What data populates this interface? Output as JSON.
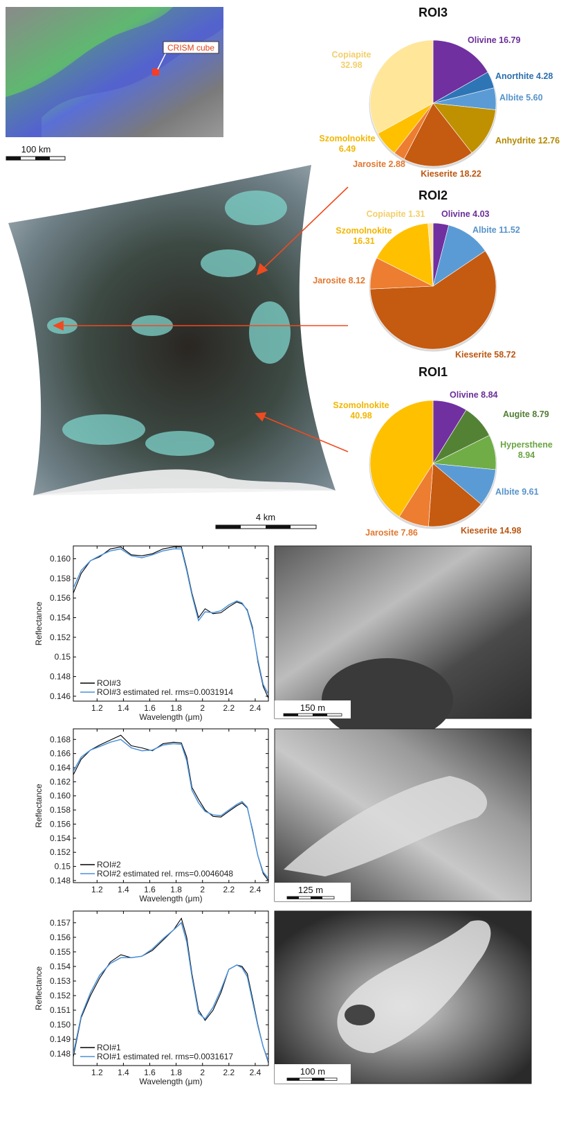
{
  "top": {
    "map_callout": "CRISM cube",
    "map_scale": "100 km",
    "cube_scale": "4 km"
  },
  "chart_data": [
    {
      "type": "pie",
      "title": "ROI3",
      "slices": [
        {
          "label": "Olivine",
          "value": 16.79,
          "text": "16.79",
          "color": "#7030a0"
        },
        {
          "label": "Anorthite",
          "value": 4.28,
          "text": "4.28",
          "color": "#2e75b6"
        },
        {
          "label": "Albite",
          "value": 5.6,
          "text": "5.60",
          "color": "#5b9bd5"
        },
        {
          "label": "Anhydrite",
          "value": 12.76,
          "text": "12.76",
          "color": "#bf9000"
        },
        {
          "label": "Kieserite",
          "value": 18.22,
          "text": "18.22",
          "color": "#c55a11"
        },
        {
          "label": "Jarosite",
          "value": 2.88,
          "text": "2.88",
          "color": "#ed7d31"
        },
        {
          "label": "Szomolnokite",
          "value": 6.49,
          "text": "6.49",
          "color": "#ffc000"
        },
        {
          "label": "Copiapite",
          "value": 32.98,
          "text": "32.98",
          "color": "#ffe699"
        }
      ]
    },
    {
      "type": "pie",
      "title": "ROI2",
      "slices": [
        {
          "label": "Olivine",
          "value": 4.03,
          "text": "4.03",
          "color": "#7030a0"
        },
        {
          "label": "Albite",
          "value": 11.52,
          "text": "11.52",
          "color": "#5b9bd5"
        },
        {
          "label": "Kieserite",
          "value": 58.72,
          "text": "58.72",
          "color": "#c55a11"
        },
        {
          "label": "Jarosite",
          "value": 8.12,
          "text": "8.12",
          "color": "#ed7d31"
        },
        {
          "label": "Szomolnokite",
          "value": 16.31,
          "text": "16.31",
          "color": "#ffc000"
        },
        {
          "label": "Copiapite",
          "value": 1.31,
          "text": "1.31",
          "color": "#ffe699"
        }
      ]
    },
    {
      "type": "pie",
      "title": "ROI1",
      "slices": [
        {
          "label": "Olivine",
          "value": 8.84,
          "text": "8.84",
          "color": "#7030a0"
        },
        {
          "label": "Augite",
          "value": 8.79,
          "text": "8.79",
          "color": "#548235"
        },
        {
          "label": "Hypersthene",
          "value": 8.94,
          "text": "8.94",
          "color": "#70ad47"
        },
        {
          "label": "Albite",
          "value": 9.61,
          "text": "9.61",
          "color": "#5b9bd5"
        },
        {
          "label": "Kieserite",
          "value": 14.98,
          "text": "14.98",
          "color": "#c55a11"
        },
        {
          "label": "Jarosite",
          "value": 7.86,
          "text": "7.86",
          "color": "#ed7d31"
        },
        {
          "label": "Szomolnokite",
          "value": 40.98,
          "text": "40.98",
          "color": "#ffc000"
        }
      ]
    },
    {
      "type": "line",
      "title": "",
      "xlabel": "Wavelength (μm)",
      "ylabel": "Reflectance",
      "xlim": [
        1.02,
        2.5
      ],
      "ylim": [
        0.1455,
        0.1613
      ],
      "xticks": [
        "1.2",
        "1.4",
        "1.6",
        "1.8",
        "2",
        "2.2",
        "2.4"
      ],
      "yticks": [
        "0.160",
        "0.158",
        "0.156",
        "0.154",
        "0.152",
        "0.15",
        "0.148",
        "0.146"
      ],
      "legend_position": "bottom-left",
      "grid": false,
      "x": [
        1.02,
        1.08,
        1.15,
        1.22,
        1.3,
        1.38,
        1.46,
        1.54,
        1.62,
        1.7,
        1.78,
        1.84,
        1.88,
        1.92,
        1.97,
        2.02,
        2.08,
        2.14,
        2.2,
        2.26,
        2.3,
        2.34,
        2.38,
        2.42,
        2.46,
        2.5
      ],
      "series": [
        {
          "name": "ROI#3",
          "color": "#000000",
          "values": [
            0.1565,
            0.1585,
            0.1598,
            0.1602,
            0.161,
            0.1612,
            0.1604,
            0.1603,
            0.1605,
            0.161,
            0.1612,
            0.1612,
            0.159,
            0.1565,
            0.154,
            0.1549,
            0.1544,
            0.1545,
            0.1551,
            0.1556,
            0.1554,
            0.1548,
            0.153,
            0.1495,
            0.147,
            0.1458
          ]
        },
        {
          "name": "ROI#3 estimated rel. rms=0.0031914",
          "color": "#4a90d9",
          "values": [
            0.157,
            0.1588,
            0.1598,
            0.1603,
            0.1608,
            0.161,
            0.1603,
            0.1601,
            0.1604,
            0.1608,
            0.161,
            0.161,
            0.1588,
            0.1563,
            0.1537,
            0.1546,
            0.1545,
            0.1547,
            0.1553,
            0.1557,
            0.1555,
            0.1547,
            0.1528,
            0.1497,
            0.1472,
            0.1462
          ]
        }
      ]
    },
    {
      "type": "line",
      "title": "",
      "xlabel": "Wavelength (μm)",
      "ylabel": "Reflectance",
      "xlim": [
        1.02,
        2.5
      ],
      "ylim": [
        0.1477,
        0.1695
      ],
      "xticks": [
        "1.2",
        "1.4",
        "1.6",
        "1.8",
        "2",
        "2.2",
        "2.4"
      ],
      "yticks": [
        "0.168",
        "0.166",
        "0.164",
        "0.162",
        "0.160",
        "0.158",
        "0.156",
        "0.154",
        "0.152",
        "0.15",
        "0.148"
      ],
      "legend_position": "bottom-left",
      "grid": false,
      "x": [
        1.02,
        1.08,
        1.15,
        1.22,
        1.3,
        1.38,
        1.46,
        1.54,
        1.62,
        1.7,
        1.78,
        1.84,
        1.88,
        1.92,
        1.97,
        2.02,
        2.08,
        2.14,
        2.2,
        2.26,
        2.3,
        2.34,
        2.38,
        2.42,
        2.46,
        2.5
      ],
      "series": [
        {
          "name": "ROI#2",
          "color": "#000000",
          "values": [
            0.163,
            0.1652,
            0.1665,
            0.1672,
            0.1679,
            0.1686,
            0.1671,
            0.1668,
            0.1664,
            0.1674,
            0.1676,
            0.1675,
            0.1655,
            0.1612,
            0.1595,
            0.158,
            0.1571,
            0.157,
            0.1578,
            0.1586,
            0.159,
            0.1583,
            0.1552,
            0.1515,
            0.149,
            0.148
          ]
        },
        {
          "name": "ROI#2 estimated rel. rms=0.0046048",
          "color": "#4a90d9",
          "values": [
            0.1635,
            0.1655,
            0.1665,
            0.167,
            0.1676,
            0.168,
            0.1668,
            0.1664,
            0.1665,
            0.1672,
            0.1674,
            0.1673,
            0.165,
            0.1608,
            0.159,
            0.1578,
            0.1573,
            0.1572,
            0.158,
            0.1588,
            0.1592,
            0.1584,
            0.155,
            0.1515,
            0.1492,
            0.1483
          ]
        }
      ]
    },
    {
      "type": "line",
      "title": "",
      "xlabel": "Wavelength (μm)",
      "ylabel": "Reflectance",
      "xlim": [
        1.02,
        2.5
      ],
      "ylim": [
        0.1472,
        0.1578
      ],
      "xticks": [
        "1.2",
        "1.4",
        "1.6",
        "1.8",
        "2",
        "2.2",
        "2.4"
      ],
      "yticks": [
        "0.157",
        "0.156",
        "0.155",
        "0.154",
        "0.153",
        "0.152",
        "0.151",
        "0.150",
        "0.149",
        "0.148"
      ],
      "legend_position": "bottom-left",
      "grid": false,
      "x": [
        1.02,
        1.08,
        1.15,
        1.22,
        1.3,
        1.38,
        1.46,
        1.54,
        1.62,
        1.7,
        1.78,
        1.84,
        1.88,
        1.92,
        1.97,
        2.02,
        2.08,
        2.14,
        2.2,
        2.26,
        2.3,
        2.34,
        2.38,
        2.42,
        2.46,
        2.5
      ],
      "series": [
        {
          "name": "ROI#1",
          "color": "#000000",
          "values": [
            0.1478,
            0.1505,
            0.152,
            0.1532,
            0.1543,
            0.1548,
            0.1546,
            0.1547,
            0.1551,
            0.1558,
            0.1565,
            0.1573,
            0.156,
            0.1535,
            0.151,
            0.1503,
            0.151,
            0.1522,
            0.1538,
            0.1541,
            0.154,
            0.1535,
            0.1518,
            0.15,
            0.1485,
            0.1474
          ]
        },
        {
          "name": "ROI#1 estimated rel. rms=0.0031617",
          "color": "#4a90d9",
          "values": [
            0.148,
            0.1506,
            0.1522,
            0.1534,
            0.1542,
            0.1546,
            0.1546,
            0.1547,
            0.1552,
            0.1559,
            0.1565,
            0.157,
            0.1557,
            0.1533,
            0.1508,
            0.1504,
            0.1512,
            0.1524,
            0.1538,
            0.1541,
            0.1539,
            0.1533,
            0.1516,
            0.1499,
            0.1485,
            0.1475
          ]
        }
      ]
    }
  ],
  "hirise": [
    {
      "scale": "150 m"
    },
    {
      "scale": "125 m"
    },
    {
      "scale": "100 m"
    }
  ]
}
